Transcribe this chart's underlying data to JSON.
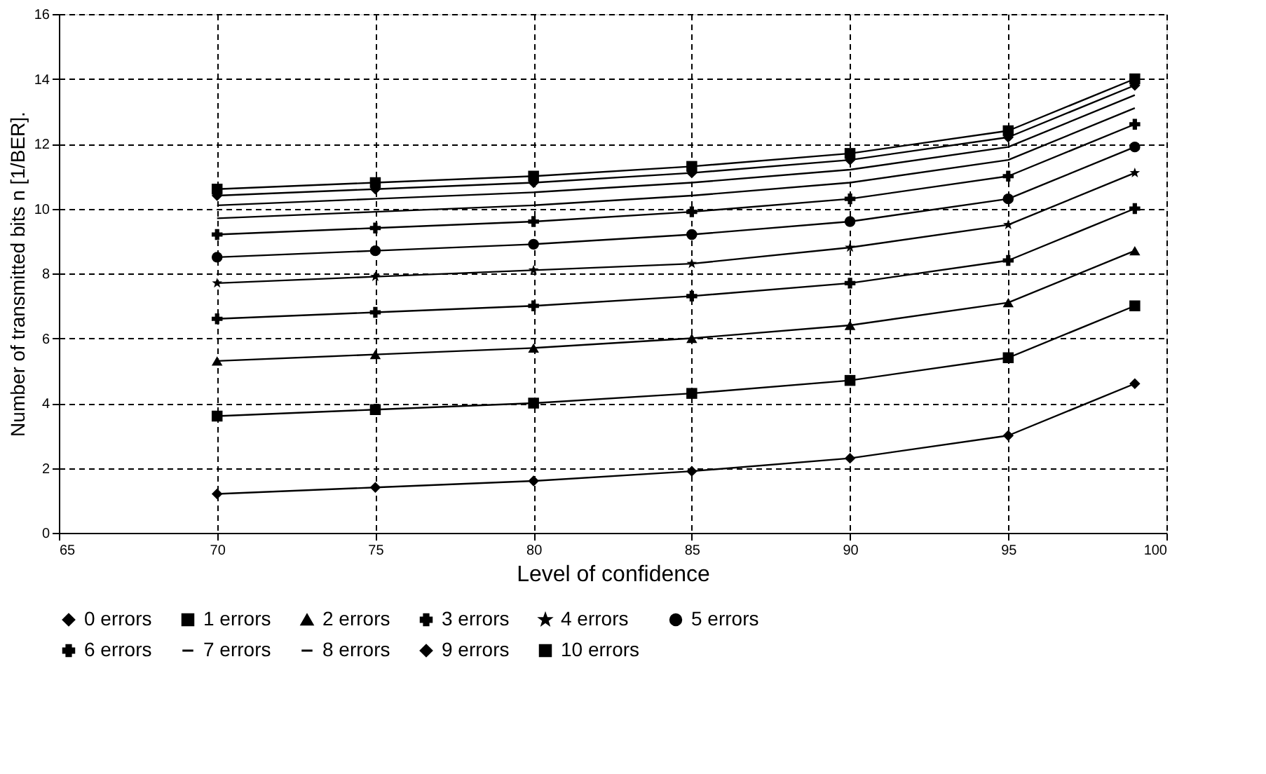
{
  "chart_data": {
    "type": "line",
    "xlabel": "Level of confidence",
    "ylabel": "Number of transmitted bits n [1/BER].",
    "x": [
      70,
      75,
      80,
      85,
      90,
      95,
      99
    ],
    "xlim": [
      65,
      100
    ],
    "xticks": [
      65,
      70,
      75,
      80,
      85,
      90,
      95,
      100
    ],
    "ylim": [
      0,
      16
    ],
    "yticks": [
      0,
      2,
      4,
      6,
      8,
      10,
      12,
      14,
      16
    ],
    "grid": true,
    "legend": "bottom",
    "line_style": "solid",
    "series": [
      {
        "name": "0 errors",
        "color": "#000000",
        "marker": "diamond",
        "values": [
          1.2,
          1.4,
          1.6,
          1.9,
          2.3,
          3.0,
          4.6
        ]
      },
      {
        "name": "1 errors",
        "color": "#000000",
        "marker": "square",
        "values": [
          3.6,
          3.8,
          4.0,
          4.3,
          4.7,
          5.4,
          7.0
        ]
      },
      {
        "name": "2 errors",
        "color": "#000000",
        "marker": "triangle",
        "values": [
          5.3,
          5.5,
          5.7,
          6.0,
          6.4,
          7.1,
          8.7
        ]
      },
      {
        "name": "3 errors",
        "color": "#000000",
        "marker": "cross",
        "values": [
          6.6,
          6.8,
          7.0,
          7.3,
          7.7,
          8.4,
          10.0
        ]
      },
      {
        "name": "4 errors",
        "color": "#000000",
        "marker": "star",
        "values": [
          7.7,
          7.9,
          8.1,
          8.3,
          8.8,
          9.5,
          11.1
        ]
      },
      {
        "name": "5 errors",
        "color": "#000000",
        "marker": "circle",
        "values": [
          8.5,
          8.7,
          8.9,
          9.2,
          9.6,
          10.3,
          11.9
        ]
      },
      {
        "name": "6 errors",
        "color": "#000000",
        "marker": "cross",
        "values": [
          9.2,
          9.4,
          9.6,
          9.9,
          10.3,
          11.0,
          12.6
        ]
      },
      {
        "name": "7 errors",
        "color": "#000000",
        "marker": "none",
        "values": [
          9.7,
          9.9,
          10.1,
          10.4,
          10.8,
          11.5,
          13.1
        ]
      },
      {
        "name": "8 errors",
        "color": "#000000",
        "marker": "none",
        "values": [
          10.1,
          10.3,
          10.5,
          10.8,
          11.2,
          11.9,
          13.5
        ]
      },
      {
        "name": "9 errors",
        "color": "#000000",
        "marker": "diamond",
        "values": [
          10.4,
          10.6,
          10.8,
          11.1,
          11.5,
          12.2,
          13.8
        ]
      },
      {
        "name": "10 errors",
        "color": "#000000",
        "marker": "square",
        "values": [
          10.6,
          10.8,
          11.0,
          11.3,
          11.7,
          12.4,
          14.0
        ]
      }
    ]
  }
}
